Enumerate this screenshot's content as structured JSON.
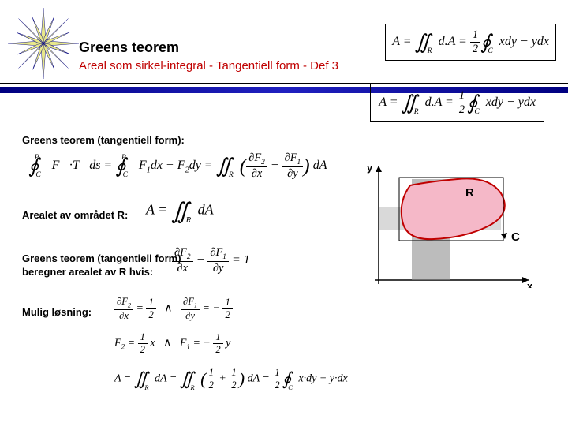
{
  "header": {
    "title": "Greens teorem",
    "subtitle": "Areal som sirkel-integral   -   Tangentiell form   -   Def 3",
    "star_color": "#e8e88a",
    "star_outline": "#000080",
    "topformula_html": "A = <span class='bigop'>∬</span><span class='intsub'>R</span> d.A = <span class='frac'><span class='n'>1</span><span class='d'>2</span></span><span class='bigop'>∮</span><span class='intsub'>C</span> xdy − ydx"
  },
  "lines": {
    "blue": "#000080",
    "black": "#000000"
  },
  "content": {
    "label1": "Greens teorem (tangentiell form):",
    "formula1_html": "<span class='bigop'>∮</span><span class='intsub'>C</span><span class='intsup'>P</span> F⃗·T⃗ds = <span class='bigop'>∮</span><span class='intsub'>C</span><span class='intsup'>P</span> F<span class='sub'>1</span>dx + F<span class='sub'>2</span>dy = <span class='bigop'>∬</span><span class='intsub'>R</span> <span class='paren'>(</span><span class='frac'><span class='n'>∂F<span class='sub'>2</span></span><span class='d'>∂x</span></span> − <span class='frac'><span class='n'>∂F<span class='sub'>1</span></span><span class='d'>∂y</span></span><span class='paren'>)</span> dA",
    "label2": "Arealet av området R:",
    "formula2_html": "A = <span class='bigop'>∬</span><span class='intsub'>R</span> dA",
    "label3": "Greens teorem (tangentiell form)",
    "label3b": "beregner arealet av R hvis:",
    "formula3_html": "<span class='frac'><span class='n'>∂F<span class='sub'>2</span></span><span class='d'>∂x</span></span> − <span class='frac'><span class='n'>∂F<span class='sub'>1</span></span><span class='d'>∂y</span></span> = 1",
    "label4": "Mulig løsning:",
    "formula4a_html": "<span class='frac'><span class='n'>∂F<span class='sub'>2</span></span><span class='d'>∂x</span></span> = <span class='frac'><span class='n'>1</span><span class='d'>2</span></span>&nbsp;&nbsp;&nbsp;<span class='wedge'>∧</span>&nbsp;&nbsp;&nbsp;<span class='frac'><span class='n'>∂F<span class='sub'>1</span></span><span class='d'>∂y</span></span> = − <span class='frac'><span class='n'>1</span><span class='d'>2</span></span>",
    "formula4b_html": "F<span class='sub'>2</span> = <span class='frac'><span class='n'>1</span><span class='d'>2</span></span> x&nbsp;&nbsp;&nbsp;<span class='wedge'>∧</span>&nbsp;&nbsp;&nbsp;F<span class='sub'>1</span> = − <span class='frac'><span class='n'>1</span><span class='d'>2</span></span> y",
    "formula5_html": "A = <span class='bigop'>∬</span><span class='intsub'>R</span> dA = <span class='bigop'>∬</span><span class='intsub'>R</span> <span class='paren'>(</span><span class='frac'><span class='n'>1</span><span class='d'>2</span></span> + <span class='frac'><span class='n'>1</span><span class='d'>2</span></span><span class='paren'>)</span> dA = <span class='frac'><span class='n'>1</span><span class='d'>2</span></span><span class='bigop'>∮</span><span class='intsub'>C</span> x·dy − y·dx",
    "boxformula_html": "A = <span class='bigop'>∬</span><span class='intsub'>R</span> d.A = <span class='frac'><span class='n'>1</span><span class='d'>2</span></span><span class='bigop'>∮</span><span class='intsub'>C</span> xdy − ydx"
  },
  "graph": {
    "y_label": "y",
    "x_label": "x",
    "R_label": "R",
    "C_label": "C",
    "axis_color": "#000000",
    "region_fill": "none",
    "region_stroke": "#c00000",
    "region_stroke_width": 2,
    "blob_fill": "#f5b8c8",
    "text_fontsize": 13
  }
}
